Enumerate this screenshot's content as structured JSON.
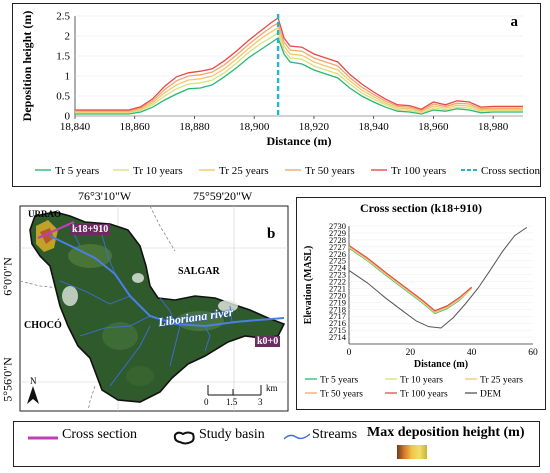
{
  "panel_a": {
    "label": "a",
    "legend": [
      "Tr 5 years",
      "Tr 10 years",
      "Tr 25 years",
      "Tr 50 years",
      "Tr 100 years",
      "Cross section"
    ]
  },
  "panel_b": {
    "label": "b",
    "lon_labels": [
      "76°3'10\"W",
      "75°59'20\"W"
    ],
    "lat_labels": [
      "6°0'0\"N",
      "5°56'0\"N"
    ],
    "place_labels": [
      "URRAO",
      "SALGAR",
      "CHOCÓ"
    ],
    "river_label": "Liboriana river",
    "km_top": "k18+910",
    "km_bottom": "k0+0",
    "north": "N",
    "scale": {
      "ticks": [
        "0",
        "1.5",
        "3"
      ],
      "unit": "km"
    }
  },
  "panel_c": {
    "legend": [
      "Tr 5 years",
      "Tr 10 years",
      "Tr 25 years",
      "Tr 50 years",
      "Tr 100 years",
      "DEM"
    ]
  },
  "bottom_legend": {
    "cross_section": "Cross section",
    "study_basin": "Study basin",
    "streams": "Streams",
    "max_height": "Max deposition height (m)"
  },
  "colors": {
    "tr5": "#2bb673",
    "tr10": "#d9e27a",
    "tr25": "#f2c86d",
    "tr50": "#f4a672",
    "tr100": "#e8484a",
    "cross": "#1fb4d9",
    "dem": "#555555",
    "magenta": "#c03fb6",
    "stream": "#3b6fd8"
  },
  "chart_data": [
    {
      "type": "line",
      "title": "",
      "xlabel": "Distance (m)",
      "ylabel": "Deposition height (m)",
      "xlim": [
        18840,
        18990
      ],
      "ylim": [
        0,
        2.5
      ],
      "xticks": [
        18840,
        18860,
        18880,
        18900,
        18920,
        18940,
        18960,
        18980
      ],
      "yticks": [
        0,
        0.5,
        1,
        1.5,
        2,
        2.5
      ],
      "x": [
        18840,
        18850,
        18858,
        18862,
        18866,
        18870,
        18874,
        18878,
        18882,
        18886,
        18890,
        18894,
        18898,
        18902,
        18906,
        18908,
        18910,
        18912,
        18916,
        18920,
        18924,
        18928,
        18932,
        18936,
        18940,
        18944,
        18948,
        18952,
        18956,
        18960,
        18964,
        18968,
        18972,
        18976,
        18980,
        18986,
        18990
      ],
      "series": [
        {
          "name": "Tr 5 years",
          "values": [
            0.05,
            0.05,
            0.05,
            0.1,
            0.22,
            0.4,
            0.55,
            0.68,
            0.7,
            0.78,
            0.98,
            1.2,
            1.45,
            1.65,
            1.85,
            1.95,
            1.55,
            1.35,
            1.3,
            1.15,
            1.05,
            0.95,
            0.7,
            0.5,
            0.35,
            0.22,
            0.12,
            0.1,
            0.05,
            0.15,
            0.12,
            0.18,
            0.15,
            0.08,
            0.1,
            0.1,
            0.1
          ]
        },
        {
          "name": "Tr 10 years",
          "values": [
            0.08,
            0.08,
            0.08,
            0.14,
            0.28,
            0.5,
            0.68,
            0.8,
            0.83,
            0.9,
            1.08,
            1.32,
            1.58,
            1.8,
            1.98,
            2.08,
            1.65,
            1.45,
            1.42,
            1.25,
            1.15,
            1.05,
            0.8,
            0.58,
            0.42,
            0.28,
            0.16,
            0.14,
            0.08,
            0.2,
            0.16,
            0.22,
            0.2,
            0.12,
            0.14,
            0.14,
            0.14
          ]
        },
        {
          "name": "Tr 25 years",
          "values": [
            0.1,
            0.1,
            0.1,
            0.17,
            0.33,
            0.58,
            0.78,
            0.9,
            0.93,
            1.0,
            1.18,
            1.42,
            1.68,
            1.92,
            2.12,
            2.2,
            1.75,
            1.55,
            1.52,
            1.35,
            1.25,
            1.15,
            0.88,
            0.65,
            0.48,
            0.32,
            0.2,
            0.18,
            0.11,
            0.25,
            0.2,
            0.27,
            0.25,
            0.15,
            0.17,
            0.17,
            0.17
          ]
        },
        {
          "name": "Tr 50 years",
          "values": [
            0.13,
            0.13,
            0.13,
            0.2,
            0.38,
            0.66,
            0.88,
            1.0,
            1.03,
            1.1,
            1.28,
            1.52,
            1.78,
            2.02,
            2.24,
            2.32,
            1.85,
            1.65,
            1.62,
            1.45,
            1.35,
            1.25,
            0.96,
            0.72,
            0.54,
            0.37,
            0.24,
            0.22,
            0.14,
            0.3,
            0.24,
            0.32,
            0.3,
            0.18,
            0.2,
            0.2,
            0.2
          ]
        },
        {
          "name": "Tr 100 years",
          "values": [
            0.15,
            0.15,
            0.15,
            0.23,
            0.43,
            0.74,
            0.98,
            1.08,
            1.12,
            1.18,
            1.38,
            1.62,
            1.88,
            2.12,
            2.35,
            2.45,
            1.95,
            1.75,
            1.72,
            1.55,
            1.45,
            1.35,
            1.04,
            0.8,
            0.6,
            0.42,
            0.28,
            0.26,
            0.17,
            0.35,
            0.28,
            0.38,
            0.35,
            0.22,
            0.24,
            0.24,
            0.24
          ]
        }
      ],
      "cross_section_x": 18908
    },
    {
      "type": "line",
      "title": "Cross section (k18+910)",
      "xlabel": "Distance (m)",
      "ylabel": "Elevation (MASL)",
      "xlim": [
        0,
        60
      ],
      "ylim": [
        2713,
        2730
      ],
      "xticks": [
        0,
        20,
        40,
        60
      ],
      "yticks": [
        2714,
        2715,
        2716,
        2717,
        2718,
        2719,
        2720,
        2721,
        2722,
        2723,
        2724,
        2725,
        2726,
        2727,
        2728,
        2729,
        2730
      ],
      "dem": {
        "name": "DEM",
        "x": [
          0,
          6,
          12,
          18,
          22,
          26,
          30,
          34,
          38,
          42,
          46,
          50,
          54,
          58
        ],
        "y": [
          2723.6,
          2721.8,
          2719.6,
          2717.6,
          2716.3,
          2715.5,
          2715.3,
          2716.8,
          2718.8,
          2721.0,
          2723.6,
          2726.3,
          2728.6,
          2729.8
        ]
      },
      "series": [
        {
          "name": "Tr 5 years",
          "x": [
            0,
            6,
            12,
            18,
            24,
            28,
            32,
            36,
            40
          ],
          "y": [
            2726.8,
            2725.0,
            2722.9,
            2720.9,
            2718.9,
            2717.4,
            2718.1,
            2719.3,
            2721.0
          ]
        },
        {
          "name": "Tr 10 years",
          "x": [
            0,
            6,
            12,
            18,
            24,
            28,
            32,
            36,
            40
          ],
          "y": [
            2726.9,
            2725.1,
            2723.0,
            2721.0,
            2719.0,
            2717.5,
            2718.2,
            2719.4,
            2721.0
          ]
        },
        {
          "name": "Tr 25 years",
          "x": [
            0,
            6,
            12,
            18,
            24,
            28,
            32,
            36,
            40
          ],
          "y": [
            2727.0,
            2725.2,
            2723.1,
            2721.1,
            2719.1,
            2717.6,
            2718.3,
            2719.5,
            2721.1
          ]
        },
        {
          "name": "Tr 50 years",
          "x": [
            0,
            6,
            12,
            18,
            24,
            28,
            32,
            36,
            40
          ],
          "y": [
            2727.1,
            2725.3,
            2723.2,
            2721.2,
            2719.2,
            2717.7,
            2718.4,
            2719.6,
            2721.1
          ]
        },
        {
          "name": "Tr 100 years",
          "x": [
            0,
            6,
            12,
            18,
            24,
            28,
            32,
            36,
            40
          ],
          "y": [
            2727.2,
            2725.4,
            2723.3,
            2721.3,
            2719.3,
            2717.8,
            2718.5,
            2719.7,
            2721.2
          ]
        }
      ]
    }
  ]
}
